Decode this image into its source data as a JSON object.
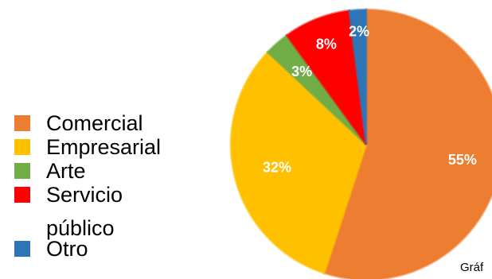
{
  "chart_data": {
    "type": "pie",
    "title": "",
    "categories": [
      "Comercial",
      "Empresarial",
      "Arte",
      "Servicio público",
      "Otro"
    ],
    "legend_lines": [
      [
        "Comercial"
      ],
      [
        "Empresarial"
      ],
      [
        "Arte"
      ],
      [
        "Servicio",
        "público"
      ],
      [
        "Otro"
      ]
    ],
    "values": [
      55,
      32,
      3,
      8,
      2
    ],
    "data_labels": [
      "55%",
      "32%",
      "3%",
      "8%",
      "2%"
    ],
    "colors": [
      "#ED7D31",
      "#FFC000",
      "#70AD47",
      "#FF0000",
      "#2E75B6"
    ],
    "legend_placement": "left",
    "start_angle_deg": 0,
    "direction": "clockwise"
  },
  "footer_text": "Gráf"
}
